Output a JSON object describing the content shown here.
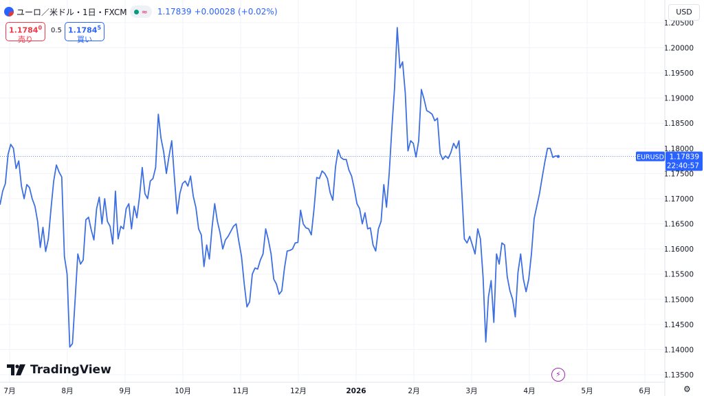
{
  "header": {
    "symbol": "ユーロ／米ドル・1日・FXCM",
    "approx_icon": "≈",
    "last_price": "1.17839",
    "change": "+0.00028 (+0.02%)"
  },
  "trade": {
    "sell_price_main": "1.1784",
    "sell_price_sup": "0",
    "sell_label": "売り",
    "spread": "0.5",
    "buy_price_main": "1.1784",
    "buy_price_sup": "5",
    "buy_label": "買い"
  },
  "currency_button": "USD",
  "logo_text": "TradingView",
  "icons": {
    "symbol_flag": "eur-usd-flag-icon",
    "market_status": "market-open-dot-icon",
    "approx": "approx-icon",
    "logo": "tradingview-logo-icon",
    "alert": "lightning-icon",
    "settings": "gear-icon"
  },
  "colors": {
    "line": "#3d6fe0",
    "sell": "#f23645",
    "buy": "#2962ff",
    "price_tag": "#2962ff"
  },
  "chart_data": {
    "type": "line",
    "x_labels": [
      "7月",
      "8月",
      "9月",
      "10月",
      "11月",
      "12月",
      "2026",
      "2月",
      "3月",
      "4月",
      "5月",
      "6月"
    ],
    "ylim": [
      1.1335,
      1.2095
    ],
    "y_ticks": [
      "1.20500",
      "1.20000",
      "1.19500",
      "1.19000",
      "1.18500",
      "1.18000",
      "1.17500",
      "1.17000",
      "1.16500",
      "1.16000",
      "1.15500",
      "1.15000",
      "1.14500",
      "1.14000",
      "1.13500"
    ],
    "last_tag": {
      "symbol": "EURUSD",
      "price": "1.17839",
      "countdown": "22:40:57"
    },
    "series": [
      {
        "values": [
          1.1688,
          1.1715,
          1.173,
          1.1788,
          1.1808,
          1.18,
          1.176,
          1.1775,
          1.1725,
          1.17,
          1.1728,
          1.1722,
          1.17,
          1.1685,
          1.1655,
          1.1603,
          1.1643,
          1.1595,
          1.162,
          1.168,
          1.1735,
          1.1767,
          1.1753,
          1.1743,
          1.1585,
          1.155,
          1.1405,
          1.1412,
          1.15,
          1.159,
          1.157,
          1.1578,
          1.1658,
          1.1663,
          1.1638,
          1.1618,
          1.168,
          1.1703,
          1.165,
          1.17,
          1.1655,
          1.1645,
          1.161,
          1.1715,
          1.162,
          1.1645,
          1.164,
          1.168,
          1.169,
          1.164,
          1.1685,
          1.1662,
          1.1705,
          1.1762,
          1.171,
          1.17,
          1.1735,
          1.174,
          1.1762,
          1.1868,
          1.182,
          1.1793,
          1.175,
          1.1785,
          1.1815,
          1.174,
          1.167,
          1.171,
          1.173,
          1.1735,
          1.1725,
          1.1745,
          1.1705,
          1.1682,
          1.164,
          1.1628,
          1.1565,
          1.1608,
          1.158,
          1.1642,
          1.169,
          1.1655,
          1.1632,
          1.16,
          1.1618,
          1.1625,
          1.1635,
          1.1645,
          1.165,
          1.1615,
          1.1585,
          1.153,
          1.1485,
          1.1495,
          1.155,
          1.1562,
          1.156,
          1.1578,
          1.159,
          1.164,
          1.1618,
          1.159,
          1.154,
          1.153,
          1.151,
          1.1517,
          1.1562,
          1.1596,
          1.1597,
          1.16,
          1.1612,
          1.1613,
          1.1677,
          1.165,
          1.1642,
          1.164,
          1.1628,
          1.168,
          1.1742,
          1.174,
          1.1755,
          1.175,
          1.174,
          1.1712,
          1.1697,
          1.1763,
          1.1797,
          1.1782,
          1.1778,
          1.1778,
          1.1757,
          1.1745,
          1.172,
          1.169,
          1.168,
          1.165,
          1.1672,
          1.164,
          1.1642,
          1.1608,
          1.1596,
          1.164,
          1.1655,
          1.1728,
          1.1683,
          1.175,
          1.184,
          1.192,
          1.204,
          1.196,
          1.1972,
          1.191,
          1.1795,
          1.1815,
          1.181,
          1.1783,
          1.1815,
          1.1917,
          1.1898,
          1.1875,
          1.1872,
          1.1868,
          1.1855,
          1.186,
          1.179,
          1.1778,
          1.1785,
          1.178,
          1.1792,
          1.181,
          1.18,
          1.1815,
          1.172,
          1.162,
          1.1612,
          1.1625,
          1.1608,
          1.159,
          1.164,
          1.162,
          1.1543,
          1.1415,
          1.1505,
          1.1537,
          1.1454,
          1.159,
          1.157,
          1.1612,
          1.1608,
          1.1545,
          1.1517,
          1.15,
          1.1465,
          1.1553,
          1.159,
          1.154,
          1.1515,
          1.154,
          1.159,
          1.166,
          1.1685,
          1.171,
          1.1742,
          1.1773,
          1.18,
          1.18,
          1.1782,
          1.1785,
          1.1784
        ]
      }
    ]
  }
}
